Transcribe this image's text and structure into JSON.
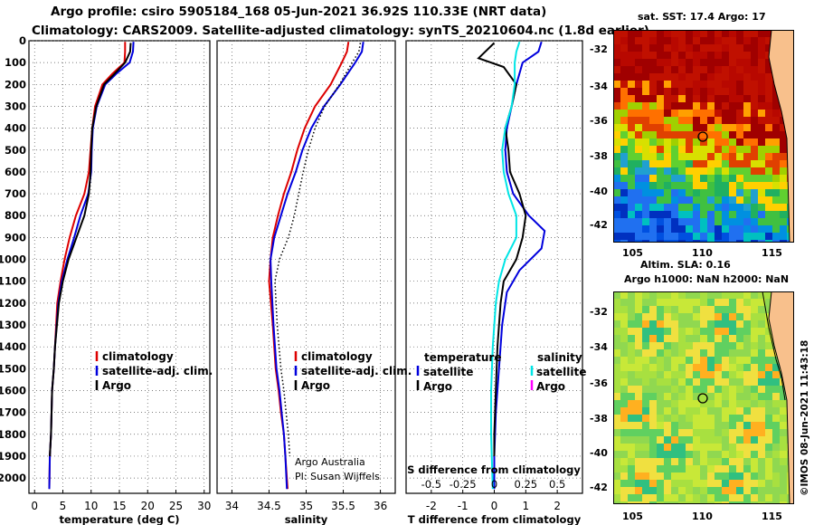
{
  "header": {
    "title_line1": "Argo profile: csiro 5905184_168 05-Jun-2021 36.92S 110.33E (NRT data)",
    "title_line2": "Climatology: CARS2009. Satellite-adjusted climatology: synTS_20210604.nc (1.8d earlier)"
  },
  "colors": {
    "climatology": "#dd0000",
    "satellite": "#0000dd",
    "argo": "#000000",
    "salinity_satellite": "#00e5e5",
    "salinity_argo": "#ff00ff"
  },
  "chart_data": [
    {
      "type": "line",
      "panel": "temperature",
      "xlabel": "temperature (deg C)",
      "ylabel": "",
      "xlim": [
        -1,
        31
      ],
      "ylim": [
        2070,
        0
      ],
      "y_reversed": true,
      "x_ticks": [
        0,
        5,
        10,
        15,
        20,
        25,
        30
      ],
      "y_ticks": [
        0,
        100,
        200,
        300,
        400,
        500,
        600,
        700,
        800,
        900,
        1000,
        1100,
        1200,
        1300,
        1400,
        1500,
        1600,
        1700,
        1800,
        1900,
        2000
      ],
      "grid": true,
      "legend": [
        "climatology",
        "satellite-adj. clim.",
        "Argo"
      ],
      "legend_placement": "lower-right",
      "series": [
        {
          "name": "climatology",
          "style": "solid",
          "x": [
            16.0,
            16.0,
            15.9,
            13.8,
            12.0,
            10.7,
            10.2,
            9.9,
            9.6,
            8.8,
            7.3,
            6.2,
            5.3,
            4.6,
            4.0,
            3.6,
            3.4,
            3.1,
            2.9,
            2.7,
            2.6
          ],
          "y": [
            5,
            50,
            100,
            150,
            200,
            300,
            400,
            500,
            600,
            700,
            800,
            900,
            1000,
            1100,
            1200,
            1400,
            1500,
            1600,
            1800,
            1900,
            2050
          ]
        },
        {
          "name": "satellite-adj. clim.",
          "style": "solid",
          "x": [
            17.5,
            17.4,
            16.8,
            14.5,
            12.5,
            11.0,
            10.3,
            10.1,
            10.0,
            9.5,
            8.1,
            7.0,
            5.8,
            4.8,
            4.2,
            3.6,
            3.4,
            3.1,
            2.9,
            2.7,
            2.6
          ],
          "y": [
            5,
            50,
            100,
            150,
            200,
            300,
            400,
            500,
            600,
            700,
            800,
            900,
            1000,
            1100,
            1200,
            1400,
            1500,
            1600,
            1800,
            1900,
            2050
          ]
        },
        {
          "name": "Argo",
          "style": "solid",
          "x": [
            17.0,
            16.9,
            16.0,
            14.2,
            12.3,
            10.9,
            10.2,
            10.0,
            9.9,
            9.6,
            8.8,
            7.4,
            6.0,
            5.0,
            4.3,
            3.6,
            3.4,
            3.1,
            2.9,
            2.7
          ],
          "y": [
            10,
            50,
            100,
            150,
            200,
            300,
            400,
            500,
            600,
            700,
            800,
            900,
            1000,
            1100,
            1200,
            1400,
            1500,
            1600,
            1800,
            1900
          ]
        }
      ]
    },
    {
      "type": "line",
      "panel": "salinity",
      "xlabel": "salinity",
      "xlim": [
        33.8,
        36.2
      ],
      "ylim": [
        2070,
        0
      ],
      "x_ticks": [
        34,
        34.5,
        35,
        35.5,
        36
      ],
      "grid": true,
      "legend": [
        "climatology",
        "satellite-adj. clim.",
        "Argo"
      ],
      "legend_placement": "lower-right",
      "annotation": [
        "Argo Australia",
        "PI: Susan Wijffels"
      ],
      "series": [
        {
          "name": "climatology",
          "style": "solid",
          "x": [
            35.57,
            35.55,
            35.48,
            35.33,
            35.12,
            34.98,
            34.88,
            34.8,
            34.7,
            34.62,
            34.55,
            34.52,
            34.5,
            34.55,
            34.59,
            34.63,
            34.66,
            34.7,
            34.72,
            34.75
          ],
          "y": [
            5,
            50,
            100,
            200,
            300,
            400,
            500,
            600,
            700,
            800,
            900,
            1000,
            1100,
            1300,
            1500,
            1600,
            1700,
            1800,
            1900,
            2050
          ]
        },
        {
          "name": "satellite-adj. clim.",
          "style": "solid",
          "x": [
            35.77,
            35.75,
            35.66,
            35.46,
            35.24,
            35.07,
            34.95,
            34.86,
            34.75,
            34.66,
            34.57,
            34.52,
            34.53,
            34.56,
            34.6,
            34.64,
            34.67,
            34.7,
            34.72,
            34.74
          ],
          "y": [
            5,
            50,
            100,
            200,
            300,
            400,
            500,
            600,
            700,
            800,
            900,
            1000,
            1100,
            1300,
            1500,
            1600,
            1700,
            1800,
            1900,
            2050
          ]
        },
        {
          "name": "Argo",
          "style": "dotted",
          "x": [
            35.73,
            35.71,
            35.62,
            35.45,
            35.25,
            35.12,
            35.03,
            34.96,
            34.9,
            34.84,
            34.76,
            34.64,
            34.58,
            34.61,
            34.66,
            34.7,
            34.73,
            34.76,
            34.78
          ],
          "y": [
            10,
            50,
            100,
            200,
            300,
            400,
            500,
            600,
            700,
            800,
            900,
            1000,
            1100,
            1300,
            1500,
            1600,
            1700,
            1800,
            1900
          ]
        }
      ]
    },
    {
      "type": "line",
      "panel": "difference",
      "xlabel": "T difference from climatology",
      "x2label": "S difference from climatology",
      "xlim": [
        -2.8,
        2.8
      ],
      "x_ticks": [
        -2,
        -1,
        0,
        1,
        2
      ],
      "x2_ticks": [
        -0.5,
        -0.25,
        0,
        0.25,
        0.5
      ],
      "ylim": [
        2070,
        0
      ],
      "grid": true,
      "legend": [
        "temperature",
        "satellite",
        "Argo",
        "salinity",
        "satellite",
        "Argo"
      ],
      "legend_placement": "lower",
      "series": [
        {
          "name": "temperature satellite",
          "style": "solid",
          "x": [
            1.5,
            1.4,
            0.9,
            0.7,
            0.55,
            0.4,
            0.35,
            0.4,
            0.6,
            1.1,
            1.6,
            1.5,
            0.8,
            0.4,
            0.25,
            0.15,
            0.05,
            0.0,
            0.0
          ],
          "y": [
            5,
            50,
            100,
            200,
            300,
            400,
            500,
            600,
            700,
            800,
            870,
            950,
            1050,
            1150,
            1300,
            1500,
            1700,
            1900,
            2050
          ]
        },
        {
          "name": "temperature Argo",
          "style": "solid",
          "x": [
            0.0,
            -0.5,
            0.3,
            0.7,
            0.55,
            0.35,
            0.45,
            0.5,
            0.8,
            1.0,
            0.9,
            0.7,
            0.3,
            0.2,
            0.1,
            0.05,
            0.0,
            0.0
          ],
          "y": [
            10,
            80,
            120,
            200,
            300,
            400,
            500,
            600,
            700,
            800,
            900,
            1000,
            1100,
            1200,
            1400,
            1600,
            1800,
            1900
          ]
        },
        {
          "name": "salinity satellite",
          "style": "solid",
          "x": [
            0.8,
            0.7,
            0.65,
            0.65,
            0.55,
            0.35,
            0.25,
            0.3,
            0.45,
            0.7,
            0.7,
            0.35,
            0.15,
            0.05,
            -0.05,
            -0.1,
            -0.1,
            -0.05
          ],
          "y": [
            5,
            50,
            100,
            200,
            300,
            400,
            500,
            600,
            700,
            800,
            900,
            1000,
            1100,
            1200,
            1400,
            1600,
            1800,
            2050
          ]
        }
      ]
    }
  ],
  "maps": {
    "sst": {
      "title": "sat. SST: 17.4 Argo: 17",
      "lat_ticks": [
        "-32",
        "-34",
        "-36",
        "-38",
        "-40",
        "-42"
      ],
      "lon_ticks": [
        "105",
        "110",
        "115"
      ]
    },
    "sla": {
      "title_line1": "Altim. SLA: 0.16",
      "title_line2": "Argo h1000: NaN h2000: NaN",
      "lat_ticks": [
        "-32",
        "-34",
        "-36",
        "-38",
        "-40",
        "-42"
      ],
      "lon_ticks": [
        "105",
        "110",
        "115"
      ]
    },
    "credit": "©IMOS 08-Jun-2021 11:43:18"
  }
}
